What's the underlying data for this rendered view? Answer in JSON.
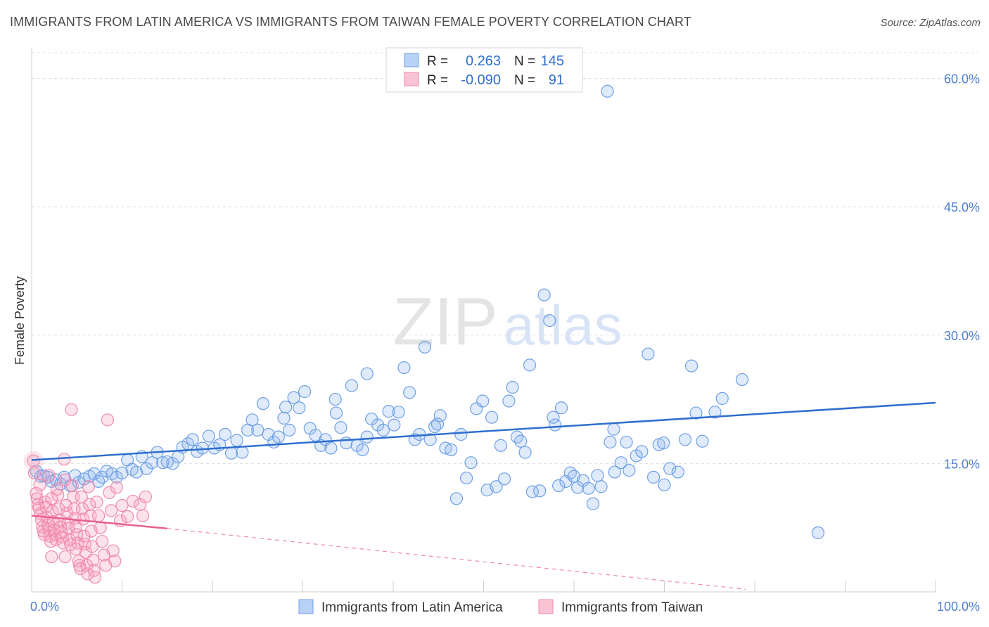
{
  "header": {
    "title": "IMMIGRANTS FROM LATIN AMERICA VS IMMIGRANTS FROM TAIWAN FEMALE POVERTY CORRELATION CHART",
    "source": "Source: ZipAtlas.com"
  },
  "watermark": {
    "zip": "ZIP",
    "atlas": "atlas"
  },
  "legend_top": {
    "rows": [
      {
        "r_label": "R =",
        "r_value": "0.263",
        "n_label": "N =",
        "n_value": "145"
      },
      {
        "r_label": "R =",
        "r_value": "-0.090",
        "n_label": "N =",
        "n_value": "91"
      }
    ]
  },
  "colors": {
    "series1": "#6fa0e6",
    "series1_line": "#2f6fcd",
    "series2": "#f08bab",
    "series2_line": "#e8608e",
    "axis_tick_label": "#4f7fcf",
    "grid": "#dcdcdc"
  },
  "chart_data": {
    "type": "scatter",
    "xlabel": "",
    "ylabel": "Female Poverty",
    "xlim": [
      0,
      100
    ],
    "ylim": [
      0,
      63
    ],
    "x_tick_labels": [
      "0.0%",
      "100.0%"
    ],
    "y_ticks": [
      15,
      30,
      45,
      60
    ],
    "y_tick_labels": [
      "15.0%",
      "30.0%",
      "45.0%",
      "60.0%"
    ],
    "grid": "horizontal dashed",
    "legend_position": "top-center and bottom",
    "series": [
      {
        "name": "Immigrants from Latin America",
        "color": "#6fa0e6",
        "trend": {
          "x": [
            0,
            100
          ],
          "y": [
            15.4,
            22.1
          ],
          "style": "solid"
        },
        "points": [
          [
            0.5,
            14.1
          ],
          [
            1.0,
            13.5
          ],
          [
            1.3,
            13.6
          ],
          [
            1.8,
            13.4
          ],
          [
            2.2,
            12.9
          ],
          [
            2.7,
            13.1
          ],
          [
            3.2,
            12.6
          ],
          [
            3.6,
            13.4
          ],
          [
            4.3,
            12.4
          ],
          [
            4.8,
            13.6
          ],
          [
            5.2,
            12.8
          ],
          [
            5.8,
            13.2
          ],
          [
            6.4,
            13.5
          ],
          [
            6.9,
            13.8
          ],
          [
            7.4,
            12.9
          ],
          [
            7.8,
            13.4
          ],
          [
            8.3,
            14.1
          ],
          [
            8.9,
            13.8
          ],
          [
            9.4,
            13.4
          ],
          [
            10.0,
            13.9
          ],
          [
            10.6,
            15.4
          ],
          [
            11.1,
            14.3
          ],
          [
            11.6,
            14.0
          ],
          [
            12.2,
            15.8
          ],
          [
            12.7,
            14.4
          ],
          [
            13.3,
            15.1
          ],
          [
            13.9,
            16.3
          ],
          [
            14.5,
            15.1
          ],
          [
            15.0,
            15.2
          ],
          [
            15.6,
            15.0
          ],
          [
            16.2,
            15.8
          ],
          [
            16.7,
            16.9
          ],
          [
            17.3,
            17.3
          ],
          [
            17.8,
            17.8
          ],
          [
            18.3,
            16.4
          ],
          [
            18.9,
            16.8
          ],
          [
            19.6,
            18.2
          ],
          [
            20.2,
            16.8
          ],
          [
            20.8,
            17.2
          ],
          [
            21.4,
            18.4
          ],
          [
            22.1,
            16.2
          ],
          [
            22.7,
            17.7
          ],
          [
            23.3,
            16.3
          ],
          [
            23.9,
            18.9
          ],
          [
            24.4,
            20.1
          ],
          [
            25.0,
            18.9
          ],
          [
            25.6,
            22.0
          ],
          [
            26.2,
            18.4
          ],
          [
            26.8,
            17.5
          ],
          [
            27.3,
            18.1
          ],
          [
            27.9,
            20.3
          ],
          [
            28.5,
            18.9
          ],
          [
            29.0,
            22.7
          ],
          [
            29.6,
            21.5
          ],
          [
            30.2,
            23.4
          ],
          [
            30.8,
            19.1
          ],
          [
            31.4,
            18.3
          ],
          [
            32.0,
            17.1
          ],
          [
            32.5,
            17.8
          ],
          [
            33.1,
            16.8
          ],
          [
            33.7,
            20.9
          ],
          [
            34.2,
            19.2
          ],
          [
            34.8,
            17.4
          ],
          [
            35.4,
            24.1
          ],
          [
            36.0,
            17.1
          ],
          [
            36.6,
            16.6
          ],
          [
            37.1,
            18.1
          ],
          [
            37.6,
            20.2
          ],
          [
            38.3,
            19.5
          ],
          [
            38.9,
            18.9
          ],
          [
            39.5,
            21.1
          ],
          [
            40.1,
            19.5
          ],
          [
            40.6,
            21.0
          ],
          [
            41.2,
            26.2
          ],
          [
            41.8,
            23.3
          ],
          [
            42.4,
            17.8
          ],
          [
            42.9,
            18.4
          ],
          [
            43.5,
            28.6
          ],
          [
            44.1,
            17.8
          ],
          [
            44.6,
            19.3
          ],
          [
            45.2,
            20.6
          ],
          [
            45.8,
            16.8
          ],
          [
            46.4,
            16.6
          ],
          [
            47.0,
            10.9
          ],
          [
            47.5,
            18.4
          ],
          [
            48.1,
            13.3
          ],
          [
            48.6,
            15.1
          ],
          [
            49.2,
            21.4
          ],
          [
            49.9,
            22.3
          ],
          [
            50.4,
            11.9
          ],
          [
            50.9,
            20.4
          ],
          [
            51.4,
            12.3
          ],
          [
            51.9,
            17.1
          ],
          [
            52.3,
            13.2
          ],
          [
            52.8,
            22.3
          ],
          [
            53.2,
            23.9
          ],
          [
            53.7,
            18.1
          ],
          [
            54.1,
            17.6
          ],
          [
            54.6,
            16.3
          ],
          [
            55.1,
            26.5
          ],
          [
            55.4,
            11.7
          ],
          [
            56.2,
            11.8
          ],
          [
            56.7,
            34.7
          ],
          [
            57.3,
            31.7
          ],
          [
            57.9,
            19.5
          ],
          [
            58.3,
            12.4
          ],
          [
            59.1,
            12.9
          ],
          [
            59.6,
            13.9
          ],
          [
            60.0,
            13.5
          ],
          [
            60.4,
            12.2
          ],
          [
            61.0,
            13.0
          ],
          [
            61.6,
            12.1
          ],
          [
            62.1,
            10.3
          ],
          [
            63.0,
            12.3
          ],
          [
            64.0,
            17.5
          ],
          [
            64.5,
            14.0
          ],
          [
            65.2,
            15.1
          ],
          [
            65.8,
            17.5
          ],
          [
            66.9,
            15.9
          ],
          [
            67.5,
            16.4
          ],
          [
            68.2,
            27.8
          ],
          [
            68.8,
            13.4
          ],
          [
            69.4,
            17.2
          ],
          [
            70.0,
            12.5
          ],
          [
            70.6,
            14.4
          ],
          [
            71.5,
            14.0
          ],
          [
            72.3,
            17.8
          ],
          [
            73.0,
            26.4
          ],
          [
            73.5,
            20.9
          ],
          [
            74.2,
            17.6
          ],
          [
            75.6,
            21.0
          ],
          [
            76.4,
            22.6
          ],
          [
            78.6,
            24.8
          ],
          [
            87.0,
            6.9
          ],
          [
            63.7,
            58.5
          ],
          [
            64.4,
            19.0
          ],
          [
            66.1,
            14.2
          ],
          [
            57.7,
            20.4
          ],
          [
            44.9,
            19.6
          ],
          [
            37.1,
            25.5
          ],
          [
            58.6,
            21.5
          ],
          [
            62.6,
            13.6
          ],
          [
            69.9,
            17.4
          ],
          [
            33.6,
            22.5
          ],
          [
            28.1,
            21.6
          ]
        ]
      },
      {
        "name": "Immigrants from Taiwan",
        "color": "#f08bab",
        "trend": {
          "x": [
            0,
            15
          ],
          "y": [
            8.9,
            7.4
          ],
          "style": "solid"
        },
        "trend_extension": {
          "x": [
            15,
            79
          ],
          "y": [
            7.4,
            0.3
          ],
          "style": "dashed"
        },
        "points": [
          [
            0.2,
            15.3
          ],
          [
            0.3,
            13.9
          ],
          [
            0.5,
            11.5
          ],
          [
            0.6,
            10.9
          ],
          [
            0.7,
            10.2
          ],
          [
            0.8,
            9.8
          ],
          [
            1.0,
            9.1
          ],
          [
            1.1,
            8.4
          ],
          [
            1.2,
            7.6
          ],
          [
            1.3,
            7.1
          ],
          [
            1.4,
            6.7
          ],
          [
            1.5,
            10.5
          ],
          [
            1.6,
            9.9
          ],
          [
            1.7,
            8.7
          ],
          [
            1.8,
            7.8
          ],
          [
            1.9,
            7.3
          ],
          [
            2.0,
            6.5
          ],
          [
            2.1,
            5.9
          ],
          [
            2.2,
            10.9
          ],
          [
            2.3,
            9.4
          ],
          [
            2.4,
            8.2
          ],
          [
            2.5,
            7.2
          ],
          [
            2.6,
            6.7
          ],
          [
            2.7,
            6.1
          ],
          [
            2.8,
            12.0
          ],
          [
            2.9,
            11.3
          ],
          [
            3.0,
            9.7
          ],
          [
            3.1,
            8.4
          ],
          [
            3.2,
            7.6
          ],
          [
            3.3,
            6.9
          ],
          [
            3.4,
            6.4
          ],
          [
            3.5,
            5.7
          ],
          [
            3.6,
            15.5
          ],
          [
            3.7,
            13.1
          ],
          [
            3.8,
            10.1
          ],
          [
            3.9,
            9.2
          ],
          [
            4.0,
            8.0
          ],
          [
            4.1,
            7.4
          ],
          [
            4.2,
            6.1
          ],
          [
            4.3,
            5.5
          ],
          [
            4.4,
            21.3
          ],
          [
            4.5,
            12.4
          ],
          [
            4.6,
            11.1
          ],
          [
            4.7,
            9.7
          ],
          [
            4.8,
            8.6
          ],
          [
            4.9,
            7.6
          ],
          [
            5.0,
            6.7
          ],
          [
            5.1,
            5.7
          ],
          [
            5.2,
            3.6
          ],
          [
            5.3,
            3.1
          ],
          [
            5.4,
            2.7
          ],
          [
            5.5,
            11.1
          ],
          [
            5.6,
            9.7
          ],
          [
            5.7,
            8.5
          ],
          [
            5.8,
            6.5
          ],
          [
            5.9,
            5.6
          ],
          [
            6.0,
            4.6
          ],
          [
            6.1,
            3.1
          ],
          [
            6.2,
            2.1
          ],
          [
            6.3,
            12.3
          ],
          [
            6.4,
            10.2
          ],
          [
            6.5,
            8.9
          ],
          [
            6.6,
            7.1
          ],
          [
            6.7,
            5.3
          ],
          [
            6.8,
            3.7
          ],
          [
            6.9,
            2.5
          ],
          [
            7.0,
            1.7
          ],
          [
            7.2,
            10.5
          ],
          [
            7.4,
            8.9
          ],
          [
            7.6,
            7.5
          ],
          [
            7.8,
            5.9
          ],
          [
            8.0,
            4.3
          ],
          [
            8.2,
            3.1
          ],
          [
            8.4,
            20.1
          ],
          [
            8.6,
            11.6
          ],
          [
            8.8,
            9.5
          ],
          [
            9.0,
            4.8
          ],
          [
            9.2,
            3.6
          ],
          [
            9.4,
            12.2
          ],
          [
            9.8,
            8.3
          ],
          [
            10.0,
            10.1
          ],
          [
            10.6,
            8.8
          ],
          [
            11.2,
            10.6
          ],
          [
            12.0,
            10.2
          ],
          [
            12.3,
            8.9
          ],
          [
            12.6,
            11.1
          ],
          [
            0.9,
            12.5
          ],
          [
            1.9,
            13.6
          ],
          [
            3.7,
            4.1
          ],
          [
            4.9,
            5.0
          ],
          [
            2.2,
            4.1
          ]
        ]
      }
    ]
  },
  "legend_bottom": {
    "items": [
      {
        "label": "Immigrants from Latin America"
      },
      {
        "label": "Immigrants from Taiwan"
      }
    ]
  }
}
